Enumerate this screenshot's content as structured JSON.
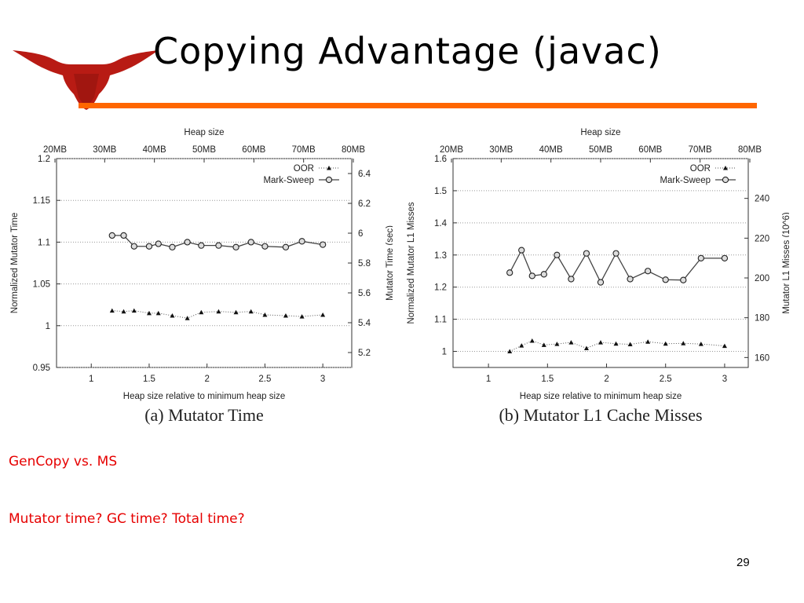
{
  "slide": {
    "title": "Copying Advantage (javac)",
    "notes": [
      "GenCopy vs. MS",
      "Mutator time? GC time? Total time?"
    ],
    "page_number": "29"
  },
  "colors": {
    "accent_rule": "#ff6600",
    "note_text": "#e60000",
    "logo_red": "#b81b14"
  },
  "logo": {
    "icon": "longhorn-logo"
  },
  "chart_data": [
    {
      "type": "line",
      "caption": "(a) Mutator Time",
      "top_axis_label": "Heap size",
      "top_ticks": [
        "20MB",
        "30MB",
        "40MB",
        "50MB",
        "60MB",
        "70MB",
        "80MB"
      ],
      "xlabel": "Heap size relative to minimum heap size",
      "ylabel": "Normalized Mutator Time",
      "y2label": "Mutator Time (sec)",
      "xlim": [
        0.7,
        3.25
      ],
      "ylim": [
        0.95,
        1.2
      ],
      "y2lim": [
        5.1,
        6.5
      ],
      "xticks": [
        "1",
        "1.5",
        "2",
        "2.5",
        "3"
      ],
      "yticks": [
        "0.95",
        "1",
        "1.05",
        "1.1",
        "1.15",
        "1.2"
      ],
      "y2ticks": [
        "5.2",
        "5.4",
        "5.6",
        "5.8",
        "6",
        "6.2",
        "6.4"
      ],
      "grid": "horizontal",
      "legend_position": "top-right",
      "series": [
        {
          "name": "OOR",
          "marker": "triangle",
          "x": [
            1.18,
            1.28,
            1.37,
            1.5,
            1.58,
            1.7,
            1.83,
            1.95,
            2.1,
            2.25,
            2.38,
            2.5,
            2.68,
            2.82,
            3.0
          ],
          "y": [
            1.018,
            1.017,
            1.018,
            1.015,
            1.015,
            1.012,
            1.009,
            1.016,
            1.017,
            1.016,
            1.017,
            1.013,
            1.012,
            1.011,
            1.013
          ]
        },
        {
          "name": "Mark-Sweep",
          "marker": "circle",
          "x": [
            1.18,
            1.28,
            1.37,
            1.5,
            1.58,
            1.7,
            1.83,
            1.95,
            2.1,
            2.25,
            2.38,
            2.5,
            2.68,
            2.82,
            3.0
          ],
          "y": [
            1.108,
            1.108,
            1.095,
            1.095,
            1.098,
            1.094,
            1.1,
            1.096,
            1.096,
            1.094,
            1.1,
            1.095,
            1.094,
            1.101,
            1.097
          ]
        }
      ]
    },
    {
      "type": "line",
      "caption": "(b) Mutator L1 Cache Misses",
      "top_axis_label": "Heap size",
      "top_ticks": [
        "20MB",
        "30MB",
        "40MB",
        "50MB",
        "60MB",
        "70MB",
        "80MB"
      ],
      "xlabel": "Heap size relative to minimum heap size",
      "ylabel": "Normalized Mutator L1 Misses",
      "y2label": "Mutator L1 Misses (10^6)",
      "xlim": [
        0.7,
        3.2
      ],
      "ylim": [
        0.95,
        1.6
      ],
      "y2lim": [
        155,
        260
      ],
      "xticks": [
        "1",
        "1.5",
        "2",
        "2.5",
        "3"
      ],
      "yticks": [
        "1",
        "1.1",
        "1.2",
        "1.3",
        "1.4",
        "1.5",
        "1.6"
      ],
      "y2ticks": [
        "160",
        "180",
        "200",
        "220",
        "240"
      ],
      "grid": "horizontal",
      "legend_position": "top-right",
      "series": [
        {
          "name": "OOR",
          "marker": "triangle",
          "x": [
            1.18,
            1.28,
            1.37,
            1.47,
            1.58,
            1.7,
            1.83,
            1.95,
            2.08,
            2.2,
            2.35,
            2.5,
            2.65,
            2.8,
            3.0
          ],
          "y": [
            1.0,
            1.018,
            1.033,
            1.02,
            1.023,
            1.028,
            1.01,
            1.028,
            1.024,
            1.022,
            1.03,
            1.024,
            1.025,
            1.023,
            1.017
          ]
        },
        {
          "name": "Mark-Sweep",
          "marker": "circle",
          "x": [
            1.18,
            1.28,
            1.37,
            1.47,
            1.58,
            1.7,
            1.83,
            1.95,
            2.08,
            2.2,
            2.35,
            2.5,
            2.65,
            2.8,
            3.0
          ],
          "y": [
            1.245,
            1.315,
            1.235,
            1.24,
            1.3,
            1.225,
            1.305,
            1.215,
            1.305,
            1.225,
            1.25,
            1.223,
            1.222,
            1.29,
            1.29
          ]
        }
      ]
    }
  ]
}
